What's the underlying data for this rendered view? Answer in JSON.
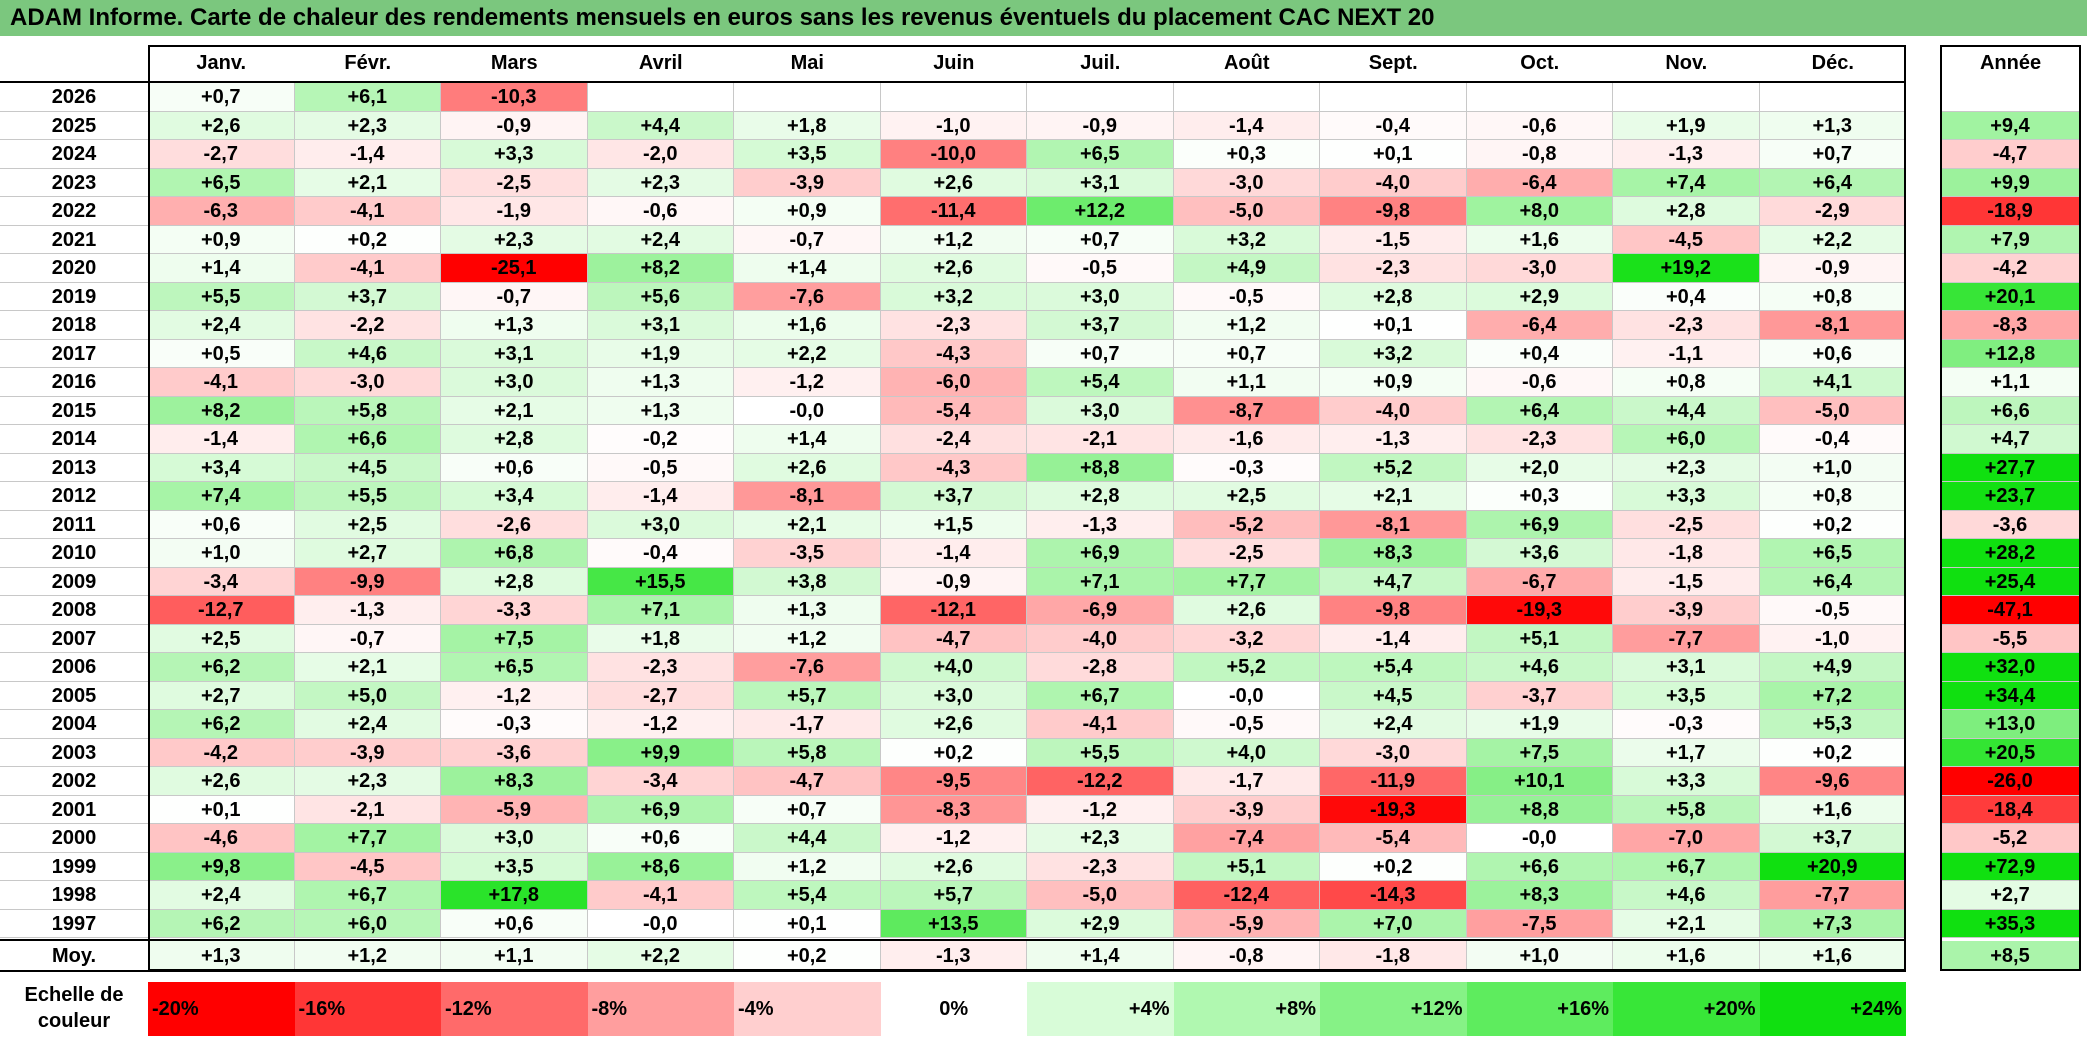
{
  "title": "ADAM Informe. Carte de chaleur des rendements mensuels en euros sans les revenus éventuels du placement CAC NEXT 20",
  "chart_data": {
    "type": "heatmap",
    "months": [
      "Janv.",
      "Févr.",
      "Mars",
      "Avril",
      "Mai",
      "Juin",
      "Juil.",
      "Août",
      "Sept.",
      "Oct.",
      "Nov.",
      "Déc."
    ],
    "annual_label": "Année",
    "average_label": "Moy.",
    "rows": [
      {
        "year": "2026",
        "values": [
          "+0,7",
          "+6,1",
          "-10,3",
          null,
          null,
          null,
          null,
          null,
          null,
          null,
          null,
          null
        ],
        "annual": null
      },
      {
        "year": "2025",
        "values": [
          "+2,6",
          "+2,3",
          "-0,9",
          "+4,4",
          "+1,8",
          "-1,0",
          "-0,9",
          "-1,4",
          "-0,4",
          "-0,6",
          "+1,9",
          "+1,3"
        ],
        "annual": "+9,4"
      },
      {
        "year": "2024",
        "values": [
          "-2,7",
          "-1,4",
          "+3,3",
          "-2,0",
          "+3,5",
          "-10,0",
          "+6,5",
          "+0,3",
          "+0,1",
          "-0,8",
          "-1,3",
          "+0,7"
        ],
        "annual": "-4,7"
      },
      {
        "year": "2023",
        "values": [
          "+6,5",
          "+2,1",
          "-2,5",
          "+2,3",
          "-3,9",
          "+2,6",
          "+3,1",
          "-3,0",
          "-4,0",
          "-6,4",
          "+7,4",
          "+6,4"
        ],
        "annual": "+9,9"
      },
      {
        "year": "2022",
        "values": [
          "-6,3",
          "-4,1",
          "-1,9",
          "-0,6",
          "+0,9",
          "-11,4",
          "+12,2",
          "-5,0",
          "-9,8",
          "+8,0",
          "+2,8",
          "-2,9"
        ],
        "annual": "-18,9"
      },
      {
        "year": "2021",
        "values": [
          "+0,9",
          "+0,2",
          "+2,3",
          "+2,4",
          "-0,7",
          "+1,2",
          "+0,7",
          "+3,2",
          "-1,5",
          "+1,6",
          "-4,5",
          "+2,2"
        ],
        "annual": "+7,9"
      },
      {
        "year": "2020",
        "values": [
          "+1,4",
          "-4,1",
          "-25,1",
          "+8,2",
          "+1,4",
          "+2,6",
          "-0,5",
          "+4,9",
          "-2,3",
          "-3,0",
          "+19,2",
          "-0,9"
        ],
        "annual": "-4,2"
      },
      {
        "year": "2019",
        "values": [
          "+5,5",
          "+3,7",
          "-0,7",
          "+5,6",
          "-7,6",
          "+3,2",
          "+3,0",
          "-0,5",
          "+2,8",
          "+2,9",
          "+0,4",
          "+0,8"
        ],
        "annual": "+20,1"
      },
      {
        "year": "2018",
        "values": [
          "+2,4",
          "-2,2",
          "+1,3",
          "+3,1",
          "+1,6",
          "-2,3",
          "+3,7",
          "+1,2",
          "+0,1",
          "-6,4",
          "-2,3",
          "-8,1"
        ],
        "annual": "-8,3"
      },
      {
        "year": "2017",
        "values": [
          "+0,5",
          "+4,6",
          "+3,1",
          "+1,9",
          "+2,2",
          "-4,3",
          "+0,7",
          "+0,7",
          "+3,2",
          "+0,4",
          "-1,1",
          "+0,6"
        ],
        "annual": "+12,8"
      },
      {
        "year": "2016",
        "values": [
          "-4,1",
          "-3,0",
          "+3,0",
          "+1,3",
          "-1,2",
          "-6,0",
          "+5,4",
          "+1,1",
          "+0,9",
          "-0,6",
          "+0,8",
          "+4,1"
        ],
        "annual": "+1,1"
      },
      {
        "year": "2015",
        "values": [
          "+8,2",
          "+5,8",
          "+2,1",
          "+1,3",
          "-0,0",
          "-5,4",
          "+3,0",
          "-8,7",
          "-4,0",
          "+6,4",
          "+4,4",
          "-5,0"
        ],
        "annual": "+6,6"
      },
      {
        "year": "2014",
        "values": [
          "-1,4",
          "+6,6",
          "+2,8",
          "-0,2",
          "+1,4",
          "-2,4",
          "-2,1",
          "-1,6",
          "-1,3",
          "-2,3",
          "+6,0",
          "-0,4"
        ],
        "annual": "+4,7"
      },
      {
        "year": "2013",
        "values": [
          "+3,4",
          "+4,5",
          "+0,6",
          "-0,5",
          "+2,6",
          "-4,3",
          "+8,8",
          "-0,3",
          "+5,2",
          "+2,0",
          "+2,3",
          "+1,0"
        ],
        "annual": "+27,7"
      },
      {
        "year": "2012",
        "values": [
          "+7,4",
          "+5,5",
          "+3,4",
          "-1,4",
          "-8,1",
          "+3,7",
          "+2,8",
          "+2,5",
          "+2,1",
          "+0,3",
          "+3,3",
          "+0,8"
        ],
        "annual": "+23,7"
      },
      {
        "year": "2011",
        "values": [
          "+0,6",
          "+2,5",
          "-2,6",
          "+3,0",
          "+2,1",
          "+1,5",
          "-1,3",
          "-5,2",
          "-8,1",
          "+6,9",
          "-2,5",
          "+0,2"
        ],
        "annual": "-3,6"
      },
      {
        "year": "2010",
        "values": [
          "+1,0",
          "+2,7",
          "+6,8",
          "-0,4",
          "-3,5",
          "-1,4",
          "+6,9",
          "-2,5",
          "+8,3",
          "+3,6",
          "-1,8",
          "+6,5"
        ],
        "annual": "+28,2"
      },
      {
        "year": "2009",
        "values": [
          "-3,4",
          "-9,9",
          "+2,8",
          "+15,5",
          "+3,8",
          "-0,9",
          "+7,1",
          "+7,7",
          "+4,7",
          "-6,7",
          "-1,5",
          "+6,4"
        ],
        "annual": "+25,4"
      },
      {
        "year": "2008",
        "values": [
          "-12,7",
          "-1,3",
          "-3,3",
          "+7,1",
          "+1,3",
          "-12,1",
          "-6,9",
          "+2,6",
          "-9,8",
          "-19,3",
          "-3,9",
          "-0,5"
        ],
        "annual": "-47,1"
      },
      {
        "year": "2007",
        "values": [
          "+2,5",
          "-0,7",
          "+7,5",
          "+1,8",
          "+1,2",
          "-4,7",
          "-4,0",
          "-3,2",
          "-1,4",
          "+5,1",
          "-7,7",
          "-1,0"
        ],
        "annual": "-5,5"
      },
      {
        "year": "2006",
        "values": [
          "+6,2",
          "+2,1",
          "+6,5",
          "-2,3",
          "-7,6",
          "+4,0",
          "-2,8",
          "+5,2",
          "+5,4",
          "+4,6",
          "+3,1",
          "+4,9"
        ],
        "annual": "+32,0"
      },
      {
        "year": "2005",
        "values": [
          "+2,7",
          "+5,0",
          "-1,2",
          "-2,7",
          "+5,7",
          "+3,0",
          "+6,7",
          "-0,0",
          "+4,5",
          "-3,7",
          "+3,5",
          "+7,2"
        ],
        "annual": "+34,4"
      },
      {
        "year": "2004",
        "values": [
          "+6,2",
          "+2,4",
          "-0,3",
          "-1,2",
          "-1,7",
          "+2,6",
          "-4,1",
          "-0,5",
          "+2,4",
          "+1,9",
          "-0,3",
          "+5,3"
        ],
        "annual": "+13,0"
      },
      {
        "year": "2003",
        "values": [
          "-4,2",
          "-3,9",
          "-3,6",
          "+9,9",
          "+5,8",
          "+0,2",
          "+5,5",
          "+4,0",
          "-3,0",
          "+7,5",
          "+1,7",
          "+0,2"
        ],
        "annual": "+20,5"
      },
      {
        "year": "2002",
        "values": [
          "+2,6",
          "+2,3",
          "+8,3",
          "-3,4",
          "-4,7",
          "-9,5",
          "-12,2",
          "-1,7",
          "-11,9",
          "+10,1",
          "+3,3",
          "-9,6"
        ],
        "annual": "-26,0"
      },
      {
        "year": "2001",
        "values": [
          "+0,1",
          "-2,1",
          "-5,9",
          "+6,9",
          "+0,7",
          "-8,3",
          "-1,2",
          "-3,9",
          "-19,3",
          "+8,8",
          "+5,8",
          "+1,6"
        ],
        "annual": "-18,4"
      },
      {
        "year": "2000",
        "values": [
          "-4,6",
          "+7,7",
          "+3,0",
          "+0,6",
          "+4,4",
          "-1,2",
          "+2,3",
          "-7,4",
          "-5,4",
          "-0,0",
          "-7,0",
          "+3,7"
        ],
        "annual": "-5,2"
      },
      {
        "year": "1999",
        "values": [
          "+9,8",
          "-4,5",
          "+3,5",
          "+8,6",
          "+1,2",
          "+2,6",
          "-2,3",
          "+5,1",
          "+0,2",
          "+6,6",
          "+6,7",
          "+20,9"
        ],
        "annual": "+72,9"
      },
      {
        "year": "1998",
        "values": [
          "+2,4",
          "+6,7",
          "+17,8",
          "-4,1",
          "+5,4",
          "+5,7",
          "-5,0",
          "-12,4",
          "-14,3",
          "+8,3",
          "+4,6",
          "-7,7"
        ],
        "annual": "+2,7"
      },
      {
        "year": "1997",
        "values": [
          "+6,2",
          "+6,0",
          "+0,6",
          "-0,0",
          "+0,1",
          "+13,5",
          "+2,9",
          "-5,9",
          "+7,0",
          "-7,5",
          "+2,1",
          "+7,3"
        ],
        "annual": "+35,3"
      }
    ],
    "average": {
      "values": [
        "+1,3",
        "+1,2",
        "+1,1",
        "+2,2",
        "+0,2",
        "-1,3",
        "+1,4",
        "-0,8",
        "-1,8",
        "+1,0",
        "+1,6",
        "+1,6"
      ],
      "annual": "+8,5"
    },
    "color_scale": {
      "label": "Echelle de couleur",
      "stops": [
        {
          "label": "-20%",
          "value": -20,
          "color": "#ff0000"
        },
        {
          "label": "-16%",
          "value": -16,
          "color": "#ff3636"
        },
        {
          "label": "-12%",
          "value": -12,
          "color": "#ff6a6a"
        },
        {
          "label": "-8%",
          "value": -8,
          "color": "#ff9e9e"
        },
        {
          "label": "-4%",
          "value": -4,
          "color": "#ffcfcf"
        },
        {
          "label": "0%",
          "value": 0,
          "color": "#ffffff"
        },
        {
          "label": "+4%",
          "value": 4,
          "color": "#d8fcd8"
        },
        {
          "label": "+8%",
          "value": 8,
          "color": "#b0f8b0"
        },
        {
          "label": "+12%",
          "value": 12,
          "color": "#86f286"
        },
        {
          "label": "+16%",
          "value": 16,
          "color": "#5eec5e"
        },
        {
          "label": "+20%",
          "value": 20,
          "color": "#38e638"
        },
        {
          "label": "+24%",
          "value": 24,
          "color": "#10e010"
        }
      ]
    }
  }
}
